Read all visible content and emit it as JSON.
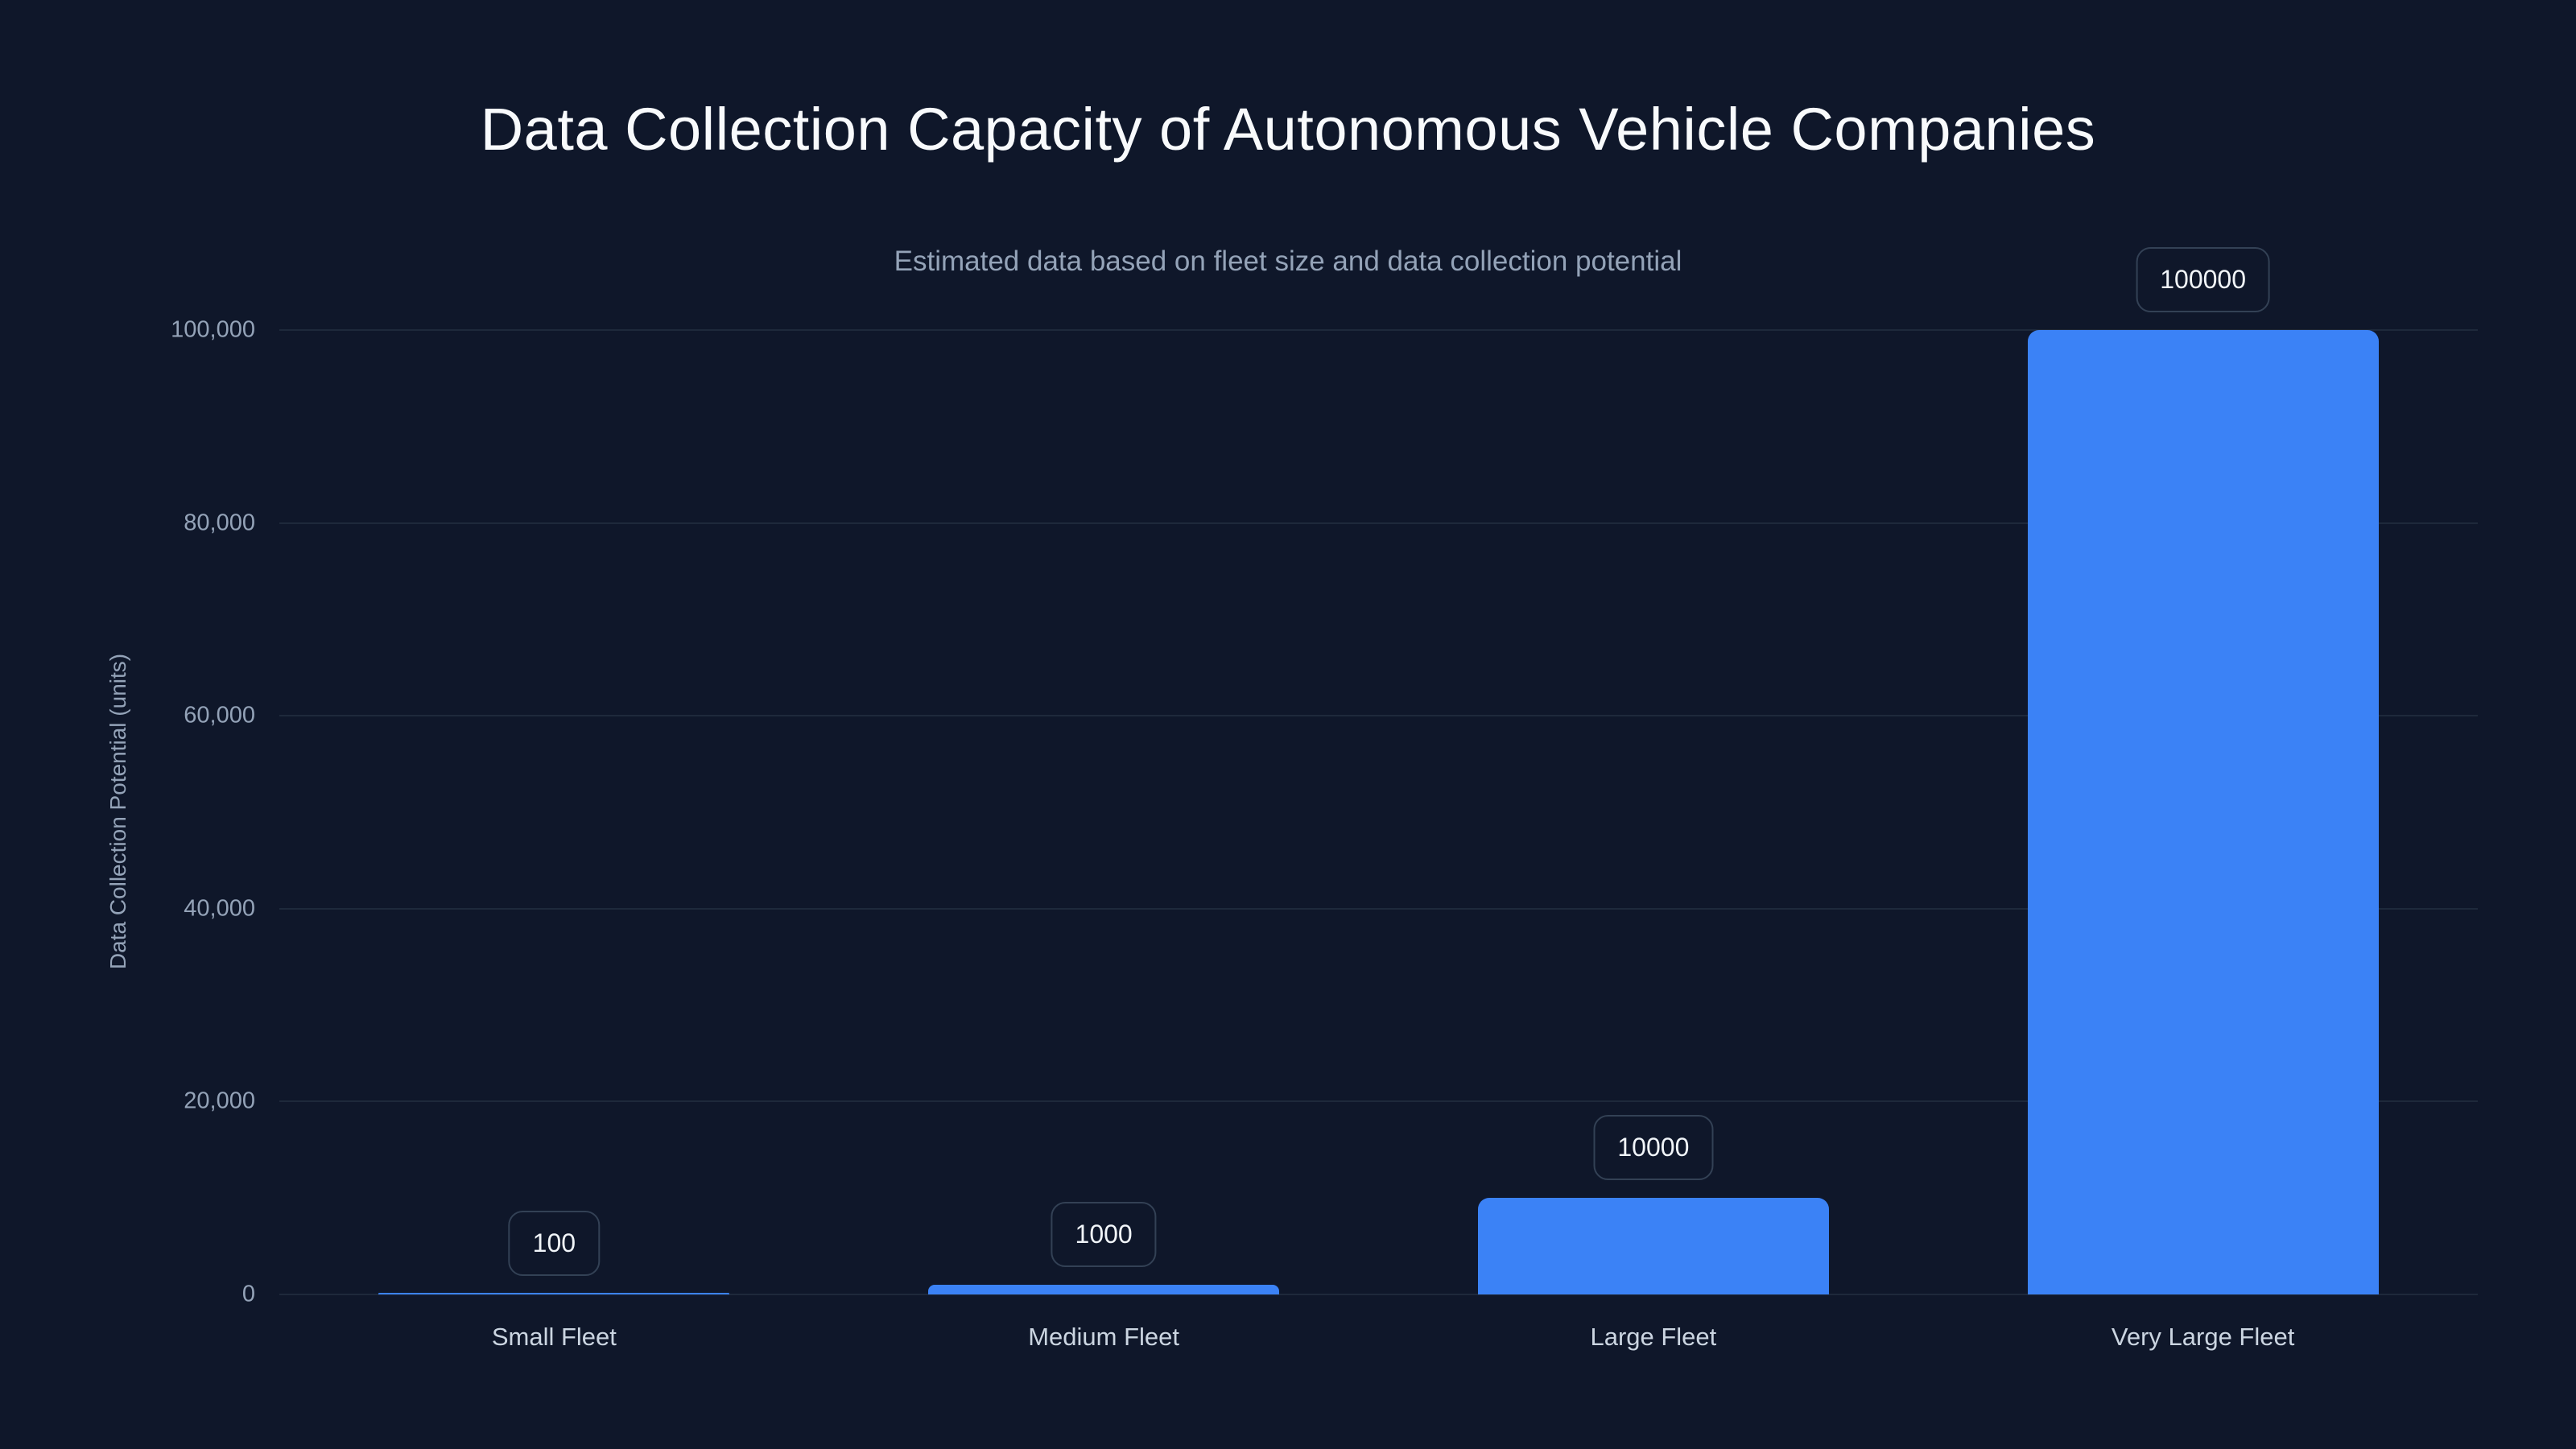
{
  "chart_data": {
    "type": "bar",
    "title": "Data Collection Capacity of Autonomous Vehicle Companies",
    "subtitle": "Estimated data based on fleet size and data collection potential",
    "xlabel": "",
    "ylabel": "Data Collection Potential (units)",
    "categories": [
      "Small Fleet",
      "Medium Fleet",
      "Large Fleet",
      "Very Large Fleet"
    ],
    "values": [
      100,
      1000,
      10000,
      100000
    ],
    "value_labels": [
      "100",
      "1000",
      "10000",
      "100000"
    ],
    "ylim": [
      0,
      100000
    ],
    "yticks": [
      0,
      20000,
      40000,
      60000,
      80000,
      100000
    ],
    "ytick_labels": [
      "0",
      "20,000",
      "40,000",
      "60,000",
      "80,000",
      "100,000"
    ],
    "grid": true,
    "legend": null,
    "colors": {
      "bar": "#3b82f6",
      "background": "#0f172a",
      "grid": "#1e293b"
    }
  }
}
